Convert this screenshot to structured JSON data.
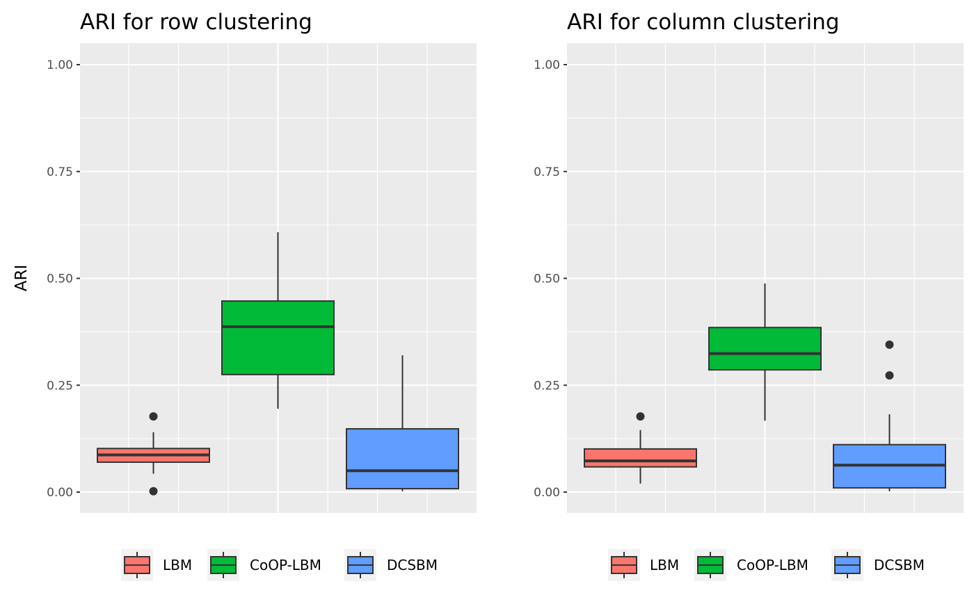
{
  "chart_data": [
    {
      "type": "box",
      "title": "ARI for row clustering",
      "xlabel": "",
      "ylabel": "ARI",
      "ylim": [
        -0.05,
        1.05
      ],
      "yticks": [
        "0.00",
        "0.25",
        "0.50",
        "0.75",
        "1.00"
      ],
      "grid": true,
      "series": [
        {
          "name": "LBM",
          "color": "#F8766D",
          "q1": 0.07,
          "median": 0.087,
          "q3": 0.102,
          "whisker_low": 0.043,
          "whisker_high": 0.14,
          "outliers": [
            0.177,
            0.002
          ]
        },
        {
          "name": "CoOP-LBM",
          "color": "#00BA38",
          "q1": 0.275,
          "median": 0.387,
          "q3": 0.447,
          "whisker_low": 0.195,
          "whisker_high": 0.608,
          "outliers": []
        },
        {
          "name": "DCSBM",
          "color": "#619CFF",
          "q1": 0.008,
          "median": 0.05,
          "q3": 0.148,
          "whisker_low": 0.002,
          "whisker_high": 0.32,
          "outliers": []
        }
      ]
    },
    {
      "type": "box",
      "title": "ARI for column clustering",
      "xlabel": "",
      "ylabel": "",
      "ylim": [
        -0.05,
        1.05
      ],
      "yticks": [
        "0.00",
        "0.25",
        "0.50",
        "0.75",
        "1.00"
      ],
      "grid": true,
      "series": [
        {
          "name": "LBM",
          "color": "#F8766D",
          "q1": 0.059,
          "median": 0.073,
          "q3": 0.101,
          "whisker_low": 0.02,
          "whisker_high": 0.145,
          "outliers": [
            0.177
          ]
        },
        {
          "name": "CoOP-LBM",
          "color": "#00BA38",
          "q1": 0.286,
          "median": 0.324,
          "q3": 0.385,
          "whisker_low": 0.167,
          "whisker_high": 0.488,
          "outliers": []
        },
        {
          "name": "DCSBM",
          "color": "#619CFF",
          "q1": 0.01,
          "median": 0.063,
          "q3": 0.111,
          "whisker_low": 0.002,
          "whisker_high": 0.182,
          "outliers": [
            0.345,
            0.273
          ]
        }
      ]
    }
  ],
  "legend": [
    "LBM",
    "CoOP-LBM",
    "DCSBM"
  ]
}
